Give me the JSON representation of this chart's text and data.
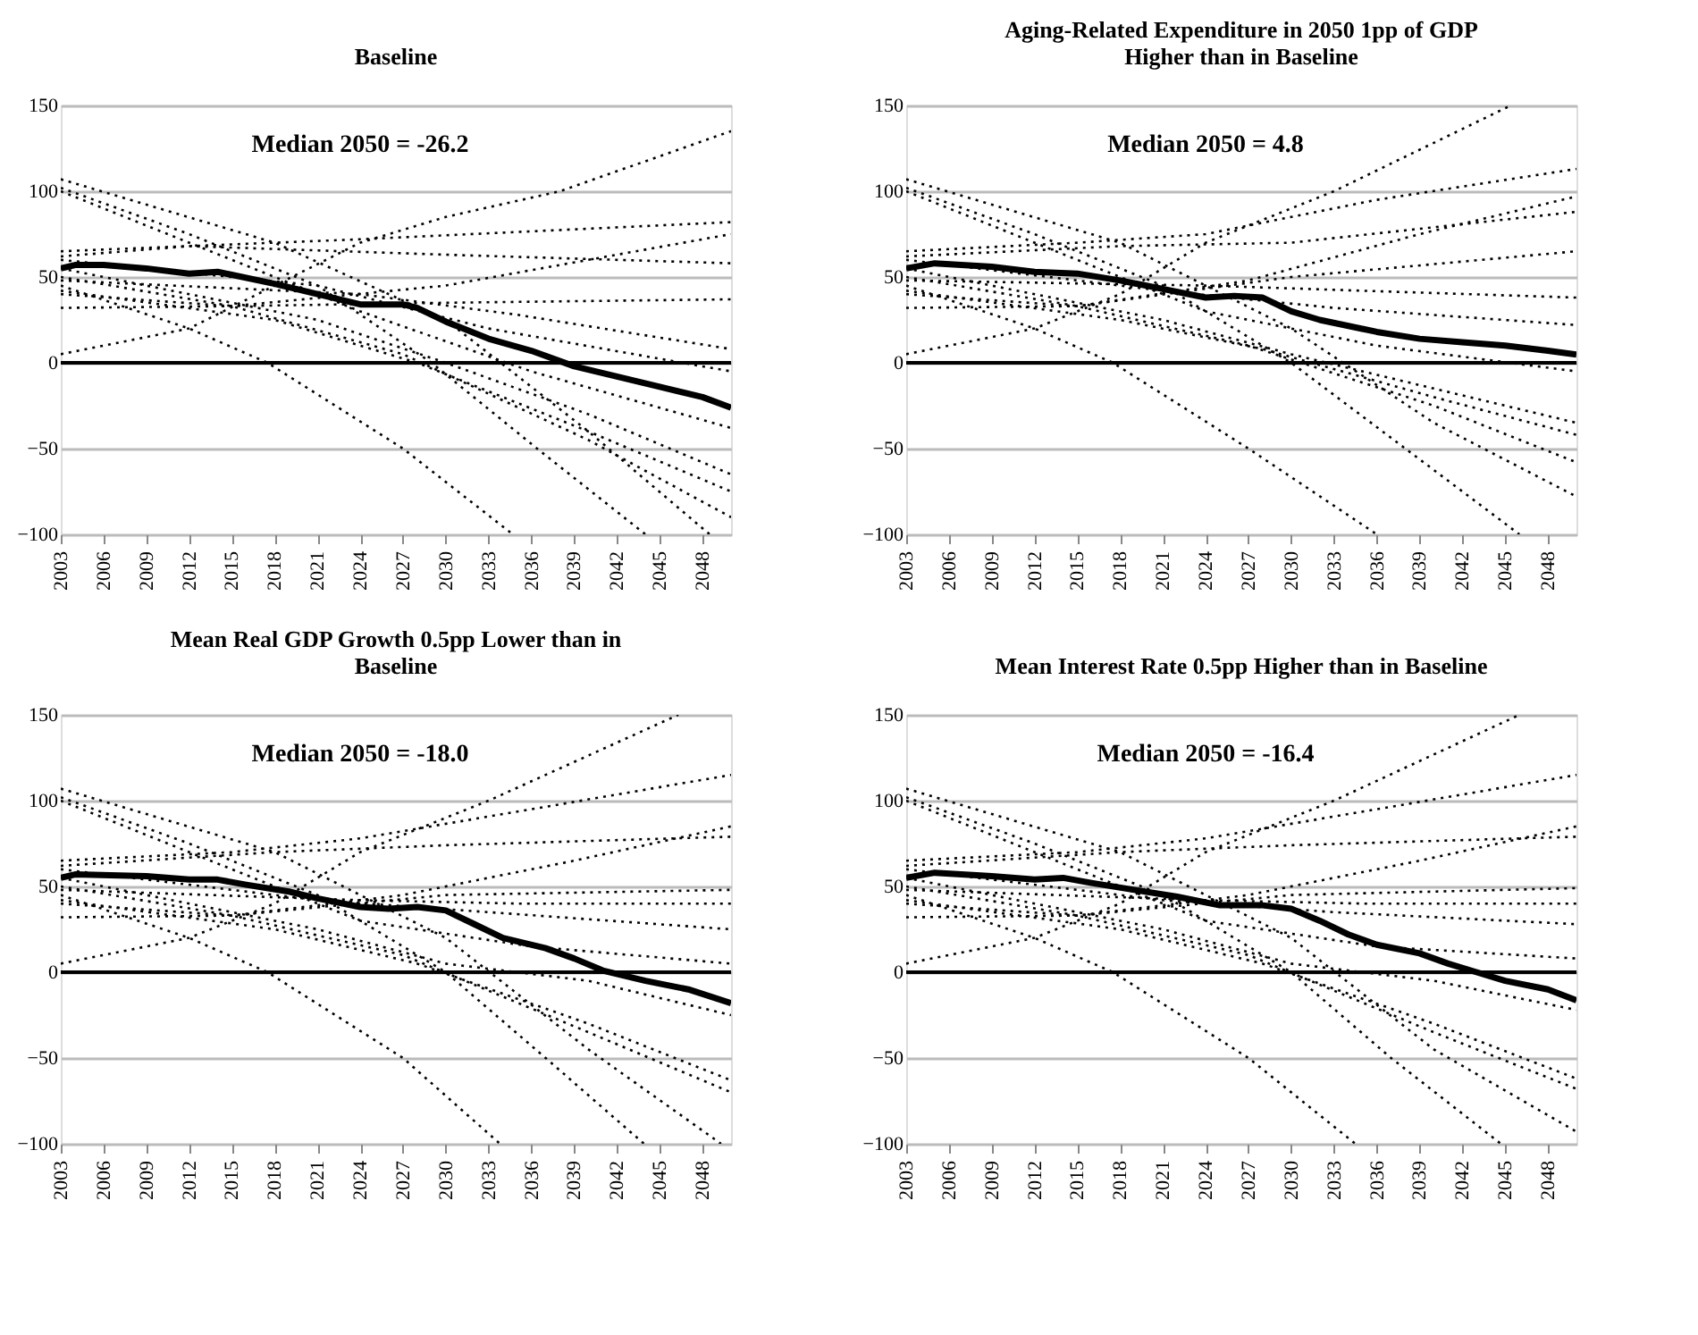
{
  "chart_data": [
    {
      "type": "line",
      "title": "Baseline",
      "annotations": [
        "Median 2050 = -26.2"
      ],
      "xlim": [
        2003,
        2050
      ],
      "xticks": [
        2003,
        2006,
        2009,
        2012,
        2015,
        2018,
        2021,
        2024,
        2027,
        2030,
        2033,
        2036,
        2039,
        2042,
        2045,
        2048
      ],
      "ylim": [
        -100,
        150
      ],
      "yticks": [
        -100,
        -50,
        0,
        50,
        100,
        150
      ],
      "grid": "y",
      "legend": false,
      "marker": "none",
      "line_style": "dotted",
      "ref_lines": [
        {
          "axis": "y",
          "value": 0,
          "color": "#000000"
        }
      ],
      "series": [
        {
          "color": "#000000",
          "x": [
            2003,
            2012,
            2018,
            2024,
            2030,
            2038,
            2050
          ],
          "values": [
            5,
            20,
            45,
            70,
            85,
            100,
            135
          ]
        },
        {
          "color": "#000000",
          "x": [
            2003,
            2024,
            2050
          ],
          "values": [
            65,
            72,
            82
          ]
        },
        {
          "color": "#000000",
          "x": [
            2003,
            2015,
            2030,
            2050
          ],
          "values": [
            32,
            33,
            45,
            75
          ]
        },
        {
          "color": "#000000",
          "x": [
            2003,
            2012,
            2030,
            2050
          ],
          "values": [
            62,
            68,
            63,
            58
          ]
        },
        {
          "color": "#000000",
          "x": [
            2003,
            2015,
            2030,
            2050
          ],
          "values": [
            40,
            33,
            35,
            37
          ]
        },
        {
          "color": "#000000",
          "x": [
            2003,
            2024,
            2035,
            2050
          ],
          "values": [
            48,
            40,
            28,
            8
          ]
        },
        {
          "color": "#000000",
          "x": [
            2003,
            2021,
            2033,
            2050
          ],
          "values": [
            60,
            45,
            20,
            -5
          ]
        },
        {
          "color": "#000000",
          "x": [
            2003,
            2015,
            2024,
            2036,
            2050
          ],
          "values": [
            100,
            60,
            30,
            -5,
            -38
          ]
        },
        {
          "color": "#000000",
          "x": [
            2003,
            2021,
            2030,
            2040,
            2050
          ],
          "values": [
            55,
            25,
            0,
            -30,
            -65
          ]
        },
        {
          "color": "#000000",
          "x": [
            2003,
            2018,
            2028,
            2040,
            2050
          ],
          "values": [
            42,
            25,
            0,
            -40,
            -75
          ]
        },
        {
          "color": "#000000",
          "x": [
            2003,
            2015,
            2027,
            2040,
            2050
          ],
          "values": [
            50,
            33,
            5,
            -45,
            -90
          ]
        },
        {
          "color": "#000000",
          "x": [
            2003,
            2018,
            2030,
            2040,
            2048.5
          ],
          "values": [
            107,
            70,
            25,
            -40,
            -100
          ]
        },
        {
          "color": "#000000",
          "x": [
            2003,
            2012,
            2021,
            2029,
            2036.4,
            2044
          ],
          "values": [
            102,
            75,
            45,
            0,
            -50,
            -100
          ]
        },
        {
          "color": "#000000",
          "x": [
            2003,
            2012,
            2017.5,
            2027,
            2034.7
          ],
          "values": [
            45,
            20,
            0,
            -50,
            -100
          ]
        },
        {
          "color": "#000000",
          "line_style": "solid",
          "x": [
            2003,
            2004,
            2006,
            2009,
            2012,
            2014,
            2018,
            2021,
            2024,
            2027,
            2028,
            2030,
            2033,
            2036,
            2039,
            2042,
            2045,
            2048,
            2050
          ],
          "values": [
            55,
            57,
            57,
            55,
            52,
            53,
            46,
            40,
            34,
            34,
            32,
            24,
            14,
            7,
            -2,
            -8,
            -14,
            -20,
            -26.2
          ]
        }
      ]
    },
    {
      "type": "line",
      "title": "Aging-Related Expenditure in 2050 1pp of GDP Higher than in Baseline",
      "annotations": [
        "Median 2050 = 4.8"
      ],
      "xlim": [
        2003,
        2050
      ],
      "xticks": [
        2003,
        2006,
        2009,
        2012,
        2015,
        2018,
        2021,
        2024,
        2027,
        2030,
        2033,
        2036,
        2039,
        2042,
        2045,
        2048
      ],
      "ylim": [
        -100,
        150
      ],
      "yticks": [
        -100,
        -50,
        0,
        50,
        100,
        150
      ],
      "grid": "y",
      "legend": false,
      "marker": "none",
      "line_style": "dotted",
      "ref_lines": [
        {
          "axis": "y",
          "value": 0,
          "color": "#000000"
        }
      ],
      "series": [
        {
          "color": "#000000",
          "x": [
            2003,
            2012,
            2018,
            2024,
            2033,
            2045.4
          ],
          "values": [
            5,
            20,
            40,
            70,
            100,
            150
          ]
        },
        {
          "color": "#000000",
          "x": [
            2003,
            2015,
            2024,
            2036,
            2050
          ],
          "values": [
            65,
            70,
            75,
            95,
            113
          ]
        },
        {
          "color": "#000000",
          "x": [
            2003,
            2015,
            2027,
            2039,
            2050
          ],
          "values": [
            32,
            33,
            48,
            75,
            97
          ]
        },
        {
          "color": "#000000",
          "x": [
            2003,
            2018,
            2030,
            2050
          ],
          "values": [
            62,
            68,
            70,
            88
          ]
        },
        {
          "color": "#000000",
          "x": [
            2003,
            2015,
            2030,
            2050
          ],
          "values": [
            40,
            33,
            50,
            65
          ]
        },
        {
          "color": "#000000",
          "x": [
            2003,
            2024,
            2035,
            2050
          ],
          "values": [
            48,
            45,
            42,
            38
          ]
        },
        {
          "color": "#000000",
          "x": [
            2003,
            2021,
            2033,
            2050
          ],
          "values": [
            60,
            42,
            32,
            22
          ]
        },
        {
          "color": "#000000",
          "x": [
            2003,
            2015,
            2024,
            2036,
            2050
          ],
          "values": [
            100,
            60,
            30,
            10,
            -5
          ]
        },
        {
          "color": "#000000",
          "x": [
            2003,
            2021,
            2030,
            2040,
            2050
          ],
          "values": [
            55,
            25,
            5,
            -15,
            -35
          ]
        },
        {
          "color": "#000000",
          "x": [
            2003,
            2018,
            2028,
            2040,
            2050
          ],
          "values": [
            42,
            25,
            8,
            -20,
            -42
          ]
        },
        {
          "color": "#000000",
          "x": [
            2003,
            2015,
            2027,
            2040,
            2050
          ],
          "values": [
            50,
            33,
            10,
            -25,
            -58
          ]
        },
        {
          "color": "#000000",
          "x": [
            2003,
            2018,
            2030,
            2040,
            2050
          ],
          "values": [
            107,
            70,
            20,
            -35,
            -78
          ]
        },
        {
          "color": "#000000",
          "x": [
            2003,
            2012,
            2021,
            2030,
            2038,
            2046
          ],
          "values": [
            102,
            75,
            45,
            0,
            -50,
            -100
          ]
        },
        {
          "color": "#000000",
          "x": [
            2003,
            2012,
            2017.5,
            2027,
            2036
          ],
          "values": [
            45,
            20,
            0,
            -50,
            -100
          ]
        },
        {
          "color": "#000000",
          "line_style": "solid",
          "x": [
            2003,
            2005,
            2009,
            2012,
            2015,
            2018,
            2021,
            2024,
            2026,
            2028,
            2030,
            2032,
            2036,
            2039,
            2042,
            2045,
            2048,
            2050
          ],
          "values": [
            55,
            58,
            56,
            53,
            52,
            48,
            43,
            38,
            39,
            38,
            30,
            25,
            18,
            14,
            12,
            10,
            7,
            4.8
          ]
        }
      ]
    },
    {
      "type": "line",
      "title": "Mean Real GDP Growth 0.5pp Lower than in Baseline",
      "annotations": [
        "Median 2050 = -18.0"
      ],
      "xlim": [
        2003,
        2050
      ],
      "xticks": [
        2003,
        2006,
        2009,
        2012,
        2015,
        2018,
        2021,
        2024,
        2027,
        2030,
        2033,
        2036,
        2039,
        2042,
        2045,
        2048
      ],
      "ylim": [
        -100,
        150
      ],
      "yticks": [
        -100,
        -50,
        0,
        50,
        100,
        150
      ],
      "grid": "y",
      "legend": false,
      "marker": "none",
      "line_style": "dotted",
      "ref_lines": [
        {
          "axis": "y",
          "value": 0,
          "color": "#000000"
        }
      ],
      "series": [
        {
          "color": "#000000",
          "x": [
            2003,
            2012,
            2018,
            2024,
            2033,
            2046.3
          ],
          "values": [
            5,
            20,
            40,
            70,
            100,
            150
          ]
        },
        {
          "color": "#000000",
          "x": [
            2003,
            2015,
            2024,
            2036,
            2050
          ],
          "values": [
            65,
            70,
            78,
            95,
            115
          ]
        },
        {
          "color": "#000000",
          "x": [
            2003,
            2015,
            2027,
            2039,
            2050
          ],
          "values": [
            32,
            33,
            45,
            65,
            85
          ]
        },
        {
          "color": "#000000",
          "x": [
            2003,
            2018,
            2030,
            2050
          ],
          "values": [
            62,
            70,
            74,
            79
          ]
        },
        {
          "color": "#000000",
          "x": [
            2003,
            2015,
            2030,
            2050
          ],
          "values": [
            40,
            33,
            45,
            48
          ]
        },
        {
          "color": "#000000",
          "x": [
            2003,
            2024,
            2035,
            2050
          ],
          "values": [
            48,
            42,
            40,
            40
          ]
        },
        {
          "color": "#000000",
          "x": [
            2003,
            2021,
            2033,
            2050
          ],
          "values": [
            60,
            42,
            35,
            25
          ]
        },
        {
          "color": "#000000",
          "x": [
            2003,
            2015,
            2024,
            2036,
            2050
          ],
          "values": [
            100,
            60,
            30,
            15,
            5
          ]
        },
        {
          "color": "#000000",
          "x": [
            2003,
            2021,
            2030,
            2040,
            2050
          ],
          "values": [
            55,
            25,
            5,
            -5,
            -25
          ]
        },
        {
          "color": "#000000",
          "x": [
            2003,
            2018,
            2028,
            2040,
            2050
          ],
          "values": [
            42,
            25,
            5,
            -30,
            -63
          ]
        },
        {
          "color": "#000000",
          "x": [
            2003,
            2015,
            2027,
            2040,
            2050
          ],
          "values": [
            50,
            33,
            10,
            -35,
            -70
          ]
        },
        {
          "color": "#000000",
          "x": [
            2003,
            2018,
            2030,
            2040,
            2049.3
          ],
          "values": [
            107,
            70,
            20,
            -45,
            -100
          ]
        },
        {
          "color": "#000000",
          "x": [
            2003,
            2012,
            2021,
            2030,
            2037,
            2043.9
          ],
          "values": [
            102,
            75,
            45,
            0,
            -50,
            -100
          ]
        },
        {
          "color": "#000000",
          "x": [
            2003,
            2012,
            2017.5,
            2027,
            2033.8
          ],
          "values": [
            45,
            20,
            0,
            -50,
            -100
          ]
        },
        {
          "color": "#000000",
          "line_style": "solid",
          "x": [
            2003,
            2004,
            2009,
            2012,
            2014,
            2016,
            2019,
            2021,
            2024,
            2026,
            2028,
            2030,
            2032,
            2034,
            2037,
            2039,
            2041,
            2044,
            2047,
            2050
          ],
          "values": [
            55,
            57,
            56,
            54,
            54,
            51,
            47,
            43,
            38,
            37,
            38,
            36,
            28,
            20,
            14,
            8,
            1,
            -5,
            -10,
            -18.0
          ]
        }
      ]
    },
    {
      "type": "line",
      "title": "Mean Interest Rate 0.5pp Higher than in Baseline",
      "annotations": [
        "Median 2050 = -16.4"
      ],
      "xlim": [
        2003,
        2050
      ],
      "xticks": [
        2003,
        2006,
        2009,
        2012,
        2015,
        2018,
        2021,
        2024,
        2027,
        2030,
        2033,
        2036,
        2039,
        2042,
        2045,
        2048
      ],
      "ylim": [
        -100,
        150
      ],
      "yticks": [
        -100,
        -50,
        0,
        50,
        100,
        150
      ],
      "grid": "y",
      "legend": false,
      "marker": "none",
      "line_style": "dotted",
      "ref_lines": [
        {
          "axis": "y",
          "value": 0,
          "color": "#000000"
        }
      ],
      "series": [
        {
          "color": "#000000",
          "x": [
            2003,
            2012,
            2018,
            2024,
            2033,
            2046
          ],
          "values": [
            5,
            20,
            40,
            70,
            100,
            150
          ]
        },
        {
          "color": "#000000",
          "x": [
            2003,
            2015,
            2024,
            2036,
            2050
          ],
          "values": [
            65,
            70,
            78,
            95,
            115
          ]
        },
        {
          "color": "#000000",
          "x": [
            2003,
            2015,
            2027,
            2039,
            2050
          ],
          "values": [
            32,
            33,
            45,
            65,
            85
          ]
        },
        {
          "color": "#000000",
          "x": [
            2003,
            2018,
            2030,
            2050
          ],
          "values": [
            62,
            70,
            74,
            79
          ]
        },
        {
          "color": "#000000",
          "x": [
            2003,
            2015,
            2030,
            2050
          ],
          "values": [
            40,
            33,
            45,
            49
          ]
        },
        {
          "color": "#000000",
          "x": [
            2003,
            2024,
            2035,
            2050
          ],
          "values": [
            48,
            42,
            40,
            40
          ]
        },
        {
          "color": "#000000",
          "x": [
            2003,
            2021,
            2033,
            2050
          ],
          "values": [
            60,
            42,
            35,
            28
          ]
        },
        {
          "color": "#000000",
          "x": [
            2003,
            2015,
            2024,
            2036,
            2050
          ],
          "values": [
            100,
            60,
            30,
            15,
            8
          ]
        },
        {
          "color": "#000000",
          "x": [
            2003,
            2021,
            2030,
            2040,
            2050
          ],
          "values": [
            55,
            25,
            5,
            -5,
            -22
          ]
        },
        {
          "color": "#000000",
          "x": [
            2003,
            2018,
            2028,
            2040,
            2050
          ],
          "values": [
            42,
            25,
            5,
            -30,
            -62
          ]
        },
        {
          "color": "#000000",
          "x": [
            2003,
            2015,
            2027,
            2040,
            2050
          ],
          "values": [
            50,
            33,
            10,
            -35,
            -68
          ]
        },
        {
          "color": "#000000",
          "x": [
            2003,
            2018,
            2030,
            2040,
            2050
          ],
          "values": [
            107,
            70,
            20,
            -45,
            -93
          ]
        },
        {
          "color": "#000000",
          "x": [
            2003,
            2012,
            2021,
            2030,
            2037,
            2044.7
          ],
          "values": [
            102,
            75,
            45,
            0,
            -50,
            -100
          ]
        },
        {
          "color": "#000000",
          "x": [
            2003,
            2012,
            2017.5,
            2027,
            2034.5
          ],
          "values": [
            45,
            20,
            0,
            -50,
            -100
          ]
        },
        {
          "color": "#000000",
          "line_style": "solid",
          "x": [
            2003,
            2005,
            2009,
            2012,
            2014,
            2016,
            2019,
            2022,
            2025,
            2028,
            2030,
            2032,
            2034,
            2036,
            2039,
            2041,
            2043,
            2045,
            2048,
            2050
          ],
          "values": [
            55,
            58,
            56,
            54,
            55,
            52,
            48,
            44,
            39,
            39,
            37,
            30,
            22,
            16,
            11,
            5,
            0,
            -5,
            -10,
            -16.4
          ]
        }
      ]
    }
  ]
}
